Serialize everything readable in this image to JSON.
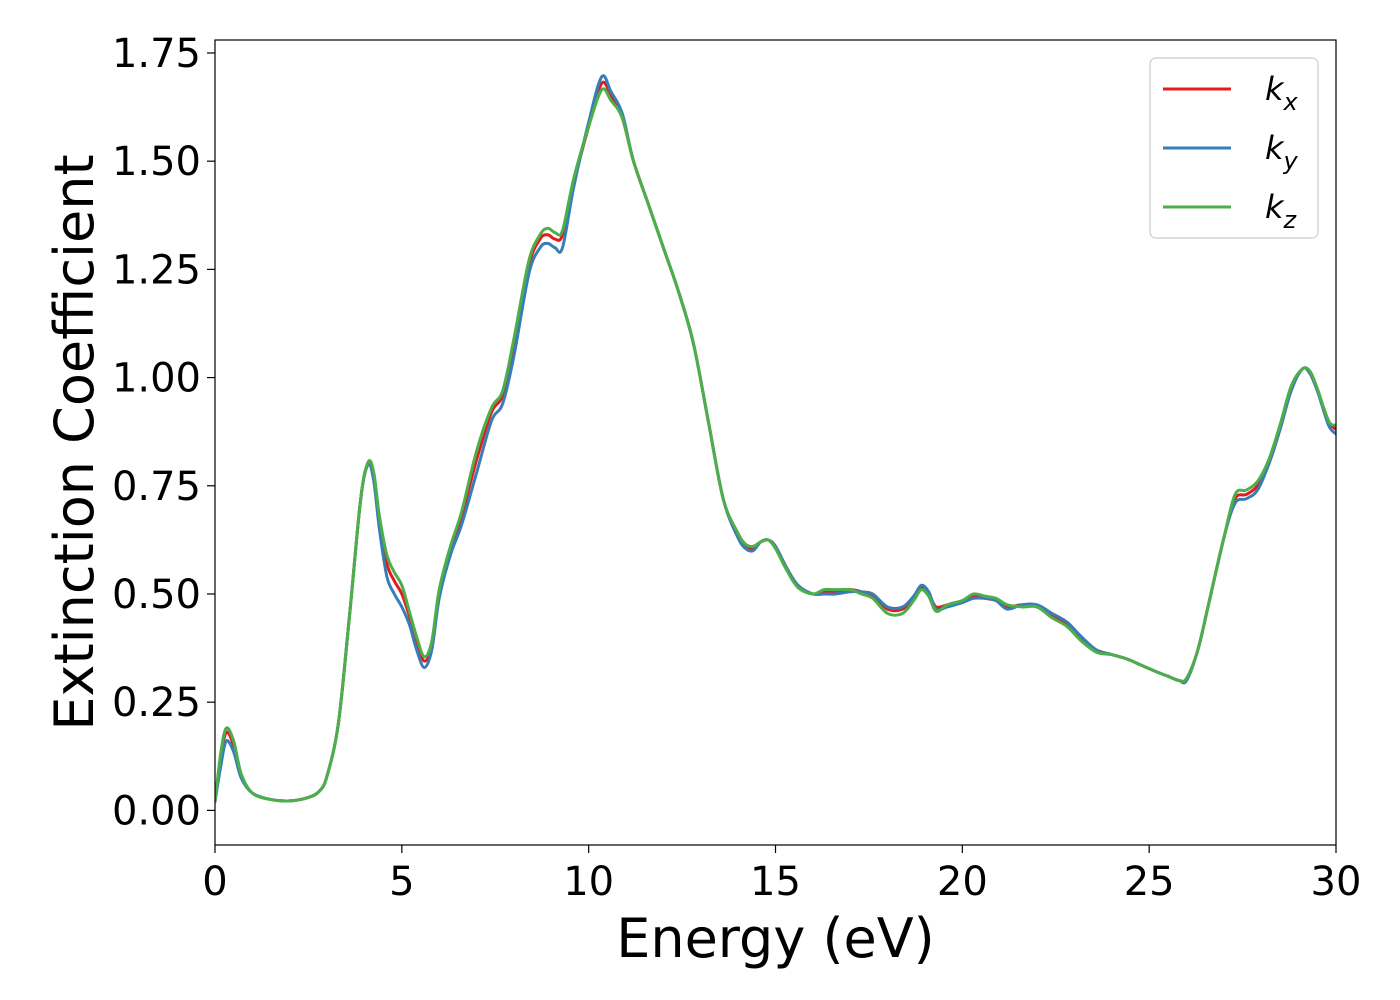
{
  "chart_data": {
    "type": "line",
    "title": "",
    "xlabel": "Energy (eV)",
    "ylabel": "Extinction Coefficient",
    "xlim": [
      0,
      30
    ],
    "ylim": [
      -0.08,
      1.78
    ],
    "xticks": [
      0,
      5,
      10,
      15,
      20,
      25,
      30
    ],
    "xtick_labels": [
      "0",
      "5",
      "10",
      "15",
      "20",
      "25",
      "30"
    ],
    "yticks": [
      0,
      0.25,
      0.5,
      0.75,
      1.0,
      1.25,
      1.5,
      1.75
    ],
    "ytick_labels": [
      "0.00",
      "0.25",
      "0.50",
      "0.75",
      "1.00",
      "1.25",
      "1.50",
      "1.75"
    ],
    "grid": false,
    "legend_position": "top-right",
    "series": [
      {
        "name": "k_x",
        "legend_base": "k",
        "legend_sub": "x",
        "color": "#e41a1c",
        "x": [
          0,
          0.15,
          0.3,
          0.5,
          0.7,
          1.0,
          1.5,
          2.0,
          2.5,
          2.8,
          3.0,
          3.3,
          3.6,
          3.9,
          4.1,
          4.25,
          4.4,
          4.6,
          4.8,
          5.0,
          5.2,
          5.4,
          5.6,
          5.8,
          6.0,
          6.3,
          6.6,
          7.0,
          7.4,
          7.7,
          8.0,
          8.4,
          8.7,
          8.9,
          9.1,
          9.3,
          9.6,
          10.0,
          10.35,
          10.6,
          10.9,
          11.2,
          11.6,
          12.0,
          12.4,
          12.8,
          13.2,
          13.6,
          14.0,
          14.2,
          14.4,
          14.6,
          14.8,
          15.0,
          15.3,
          15.6,
          16.0,
          16.3,
          16.6,
          17.0,
          17.3,
          17.6,
          18.0,
          18.4,
          18.7,
          18.9,
          19.1,
          19.3,
          19.6,
          20.0,
          20.3,
          20.6,
          20.9,
          21.2,
          21.6,
          22.0,
          22.4,
          22.8,
          23.2,
          23.6,
          24.0,
          24.4,
          24.8,
          25.2,
          25.5,
          25.8,
          26.0,
          26.3,
          26.6,
          27.0,
          27.3,
          27.6,
          27.9,
          28.2,
          28.5,
          28.8,
          29.1,
          29.3,
          29.5,
          29.8,
          30.0
        ],
        "y": [
          0.02,
          0.12,
          0.18,
          0.15,
          0.08,
          0.04,
          0.025,
          0.022,
          0.03,
          0.045,
          0.08,
          0.2,
          0.45,
          0.72,
          0.8,
          0.77,
          0.67,
          0.57,
          0.53,
          0.5,
          0.45,
          0.39,
          0.345,
          0.38,
          0.5,
          0.6,
          0.68,
          0.81,
          0.92,
          0.96,
          1.08,
          1.26,
          1.32,
          1.33,
          1.32,
          1.33,
          1.45,
          1.58,
          1.68,
          1.65,
          1.6,
          1.5,
          1.4,
          1.3,
          1.2,
          1.08,
          0.9,
          0.72,
          0.63,
          0.61,
          0.605,
          0.62,
          0.625,
          0.61,
          0.56,
          0.52,
          0.5,
          0.505,
          0.505,
          0.51,
          0.505,
          0.495,
          0.465,
          0.465,
          0.49,
          0.515,
          0.5,
          0.47,
          0.475,
          0.48,
          0.495,
          0.49,
          0.485,
          0.47,
          0.475,
          0.47,
          0.45,
          0.43,
          0.395,
          0.37,
          0.36,
          0.35,
          0.335,
          0.32,
          0.31,
          0.3,
          0.305,
          0.37,
          0.48,
          0.63,
          0.72,
          0.73,
          0.75,
          0.8,
          0.88,
          0.97,
          1.02,
          1.01,
          0.97,
          0.9,
          0.88
        ]
      },
      {
        "name": "k_y",
        "legend_base": "k",
        "legend_sub": "y",
        "color": "#377eb8",
        "x": [
          0,
          0.15,
          0.3,
          0.5,
          0.7,
          1.0,
          1.5,
          2.0,
          2.5,
          2.8,
          3.0,
          3.3,
          3.6,
          3.9,
          4.1,
          4.25,
          4.4,
          4.6,
          4.8,
          5.0,
          5.2,
          5.4,
          5.6,
          5.8,
          6.0,
          6.3,
          6.6,
          7.0,
          7.4,
          7.7,
          8.0,
          8.4,
          8.7,
          8.9,
          9.1,
          9.3,
          9.6,
          10.0,
          10.35,
          10.6,
          10.9,
          11.2,
          11.6,
          12.0,
          12.4,
          12.8,
          13.2,
          13.6,
          14.0,
          14.2,
          14.4,
          14.6,
          14.8,
          15.0,
          15.3,
          15.6,
          16.0,
          16.3,
          16.6,
          17.0,
          17.3,
          17.6,
          18.0,
          18.4,
          18.7,
          18.9,
          19.1,
          19.3,
          19.6,
          20.0,
          20.3,
          20.6,
          20.9,
          21.2,
          21.6,
          22.0,
          22.4,
          22.8,
          23.2,
          23.6,
          24.0,
          24.4,
          24.8,
          25.2,
          25.5,
          25.8,
          26.0,
          26.3,
          26.6,
          27.0,
          27.3,
          27.6,
          27.9,
          28.2,
          28.5,
          28.8,
          29.1,
          29.3,
          29.5,
          29.8,
          30.0
        ],
        "y": [
          0.02,
          0.1,
          0.16,
          0.135,
          0.075,
          0.04,
          0.025,
          0.022,
          0.03,
          0.045,
          0.08,
          0.2,
          0.45,
          0.72,
          0.8,
          0.76,
          0.65,
          0.54,
          0.5,
          0.47,
          0.43,
          0.37,
          0.33,
          0.37,
          0.49,
          0.59,
          0.66,
          0.78,
          0.9,
          0.94,
          1.05,
          1.24,
          1.3,
          1.31,
          1.3,
          1.3,
          1.44,
          1.59,
          1.695,
          1.66,
          1.61,
          1.5,
          1.4,
          1.3,
          1.2,
          1.08,
          0.9,
          0.72,
          0.63,
          0.605,
          0.6,
          0.62,
          0.625,
          0.61,
          0.56,
          0.52,
          0.5,
          0.5,
          0.5,
          0.505,
          0.505,
          0.5,
          0.47,
          0.47,
          0.495,
          0.52,
          0.505,
          0.465,
          0.47,
          0.48,
          0.49,
          0.49,
          0.485,
          0.465,
          0.475,
          0.475,
          0.455,
          0.435,
          0.4,
          0.37,
          0.36,
          0.35,
          0.335,
          0.32,
          0.31,
          0.3,
          0.3,
          0.37,
          0.48,
          0.63,
          0.71,
          0.72,
          0.74,
          0.8,
          0.88,
          0.97,
          1.02,
          1.01,
          0.97,
          0.89,
          0.87
        ]
      },
      {
        "name": "k_z",
        "legend_base": "k",
        "legend_sub": "z",
        "color": "#4daf4a",
        "x": [
          0,
          0.15,
          0.3,
          0.5,
          0.7,
          1.0,
          1.5,
          2.0,
          2.5,
          2.8,
          3.0,
          3.3,
          3.6,
          3.9,
          4.1,
          4.25,
          4.4,
          4.6,
          4.8,
          5.0,
          5.2,
          5.4,
          5.6,
          5.8,
          6.0,
          6.3,
          6.6,
          7.0,
          7.4,
          7.7,
          8.0,
          8.4,
          8.7,
          8.9,
          9.1,
          9.3,
          9.6,
          10.0,
          10.35,
          10.6,
          10.9,
          11.2,
          11.6,
          12.0,
          12.4,
          12.8,
          13.2,
          13.6,
          14.0,
          14.2,
          14.4,
          14.6,
          14.8,
          15.0,
          15.3,
          15.6,
          16.0,
          16.3,
          16.6,
          17.0,
          17.3,
          17.6,
          18.0,
          18.4,
          18.7,
          18.9,
          19.1,
          19.3,
          19.6,
          20.0,
          20.3,
          20.6,
          20.9,
          21.2,
          21.6,
          22.0,
          22.4,
          22.8,
          23.2,
          23.6,
          24.0,
          24.4,
          24.8,
          25.2,
          25.5,
          25.8,
          26.0,
          26.3,
          26.6,
          27.0,
          27.3,
          27.6,
          27.9,
          28.2,
          28.5,
          28.8,
          29.1,
          29.3,
          29.5,
          29.8,
          30.0
        ],
        "y": [
          0.02,
          0.13,
          0.19,
          0.16,
          0.085,
          0.04,
          0.025,
          0.022,
          0.03,
          0.045,
          0.08,
          0.2,
          0.45,
          0.72,
          0.805,
          0.78,
          0.68,
          0.59,
          0.55,
          0.52,
          0.46,
          0.4,
          0.355,
          0.39,
          0.51,
          0.61,
          0.69,
          0.83,
          0.93,
          0.97,
          1.09,
          1.27,
          1.33,
          1.345,
          1.335,
          1.34,
          1.46,
          1.58,
          1.665,
          1.64,
          1.6,
          1.5,
          1.4,
          1.3,
          1.2,
          1.08,
          0.9,
          0.72,
          0.64,
          0.615,
          0.61,
          0.62,
          0.625,
          0.605,
          0.555,
          0.515,
          0.5,
          0.51,
          0.51,
          0.51,
          0.5,
          0.49,
          0.455,
          0.455,
          0.485,
          0.51,
          0.495,
          0.46,
          0.475,
          0.485,
          0.5,
          0.495,
          0.49,
          0.475,
          0.47,
          0.47,
          0.445,
          0.425,
          0.39,
          0.365,
          0.36,
          0.35,
          0.335,
          0.32,
          0.31,
          0.3,
          0.305,
          0.37,
          0.48,
          0.63,
          0.73,
          0.74,
          0.76,
          0.81,
          0.89,
          0.98,
          1.02,
          1.015,
          0.975,
          0.9,
          0.89
        ]
      }
    ]
  }
}
